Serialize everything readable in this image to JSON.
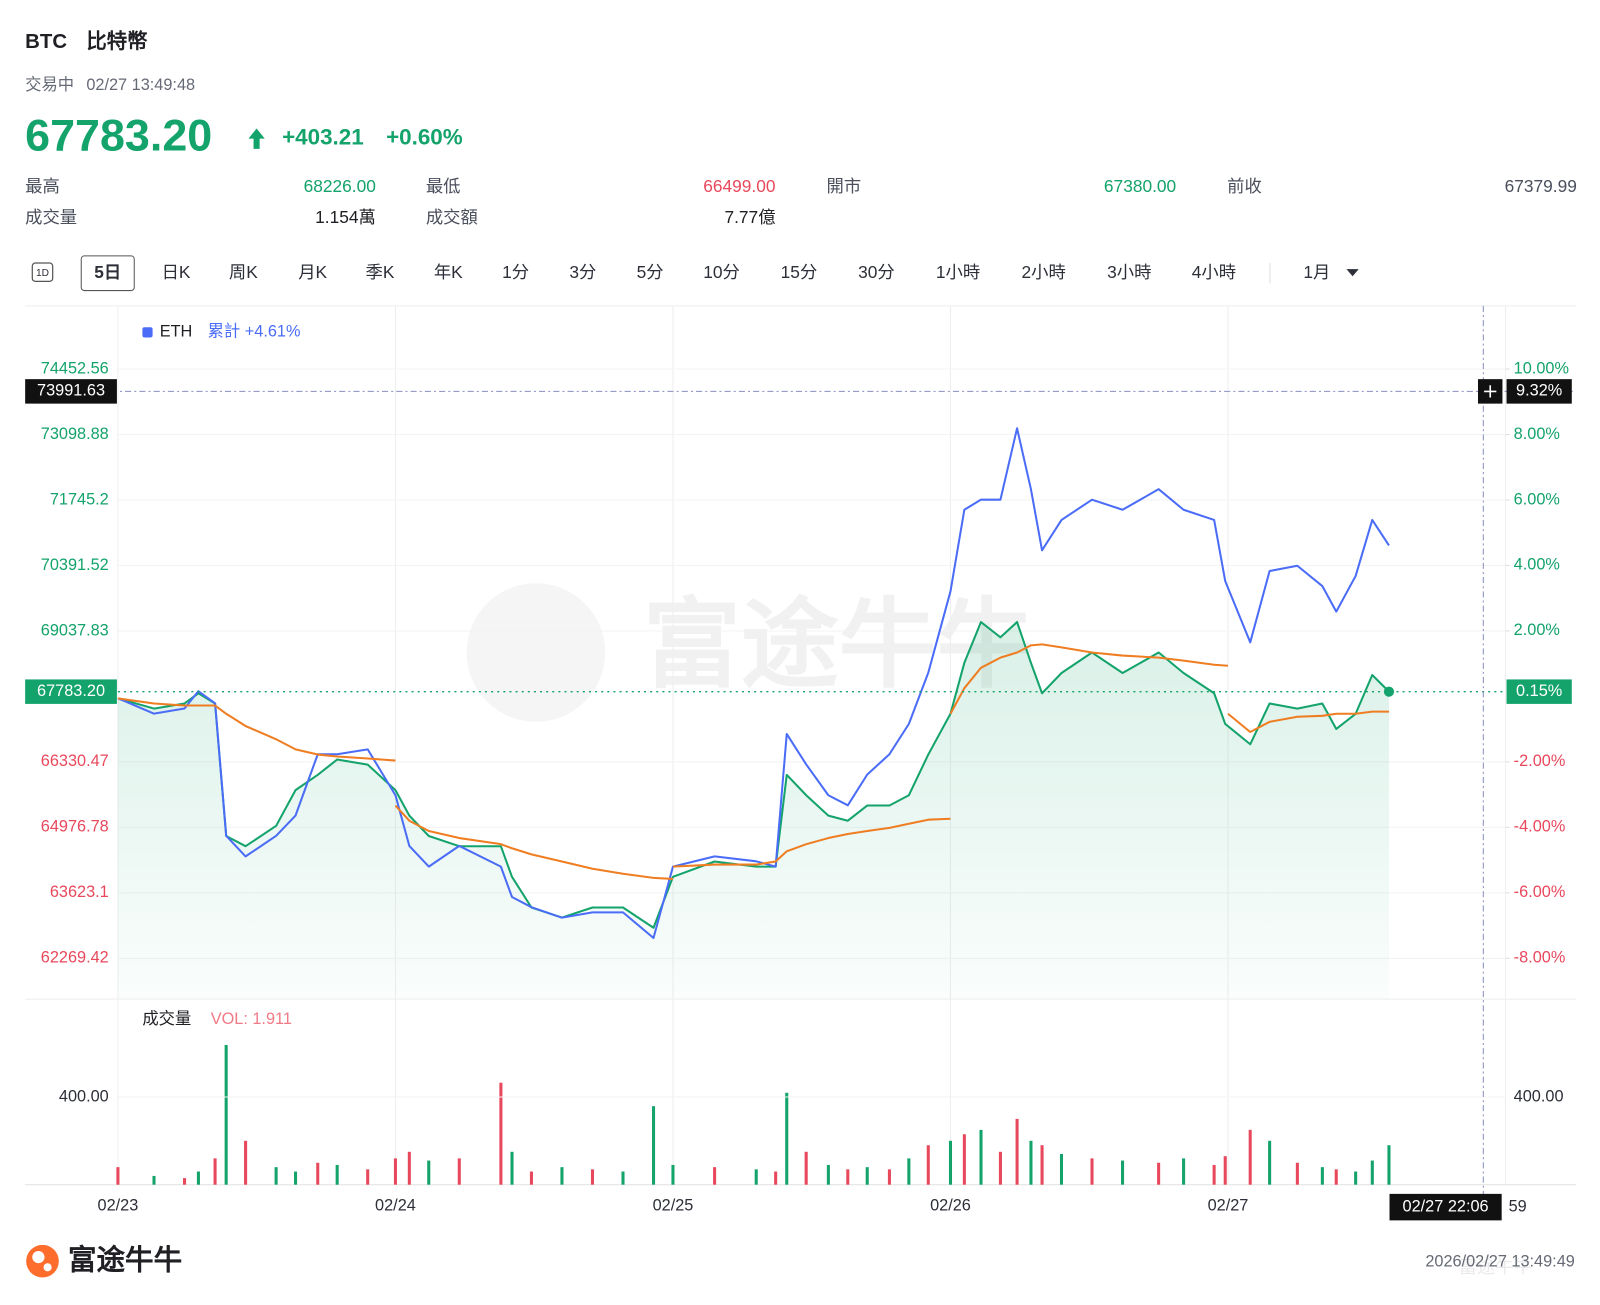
{
  "header": {
    "symbol": "BTC",
    "name": "比特幣",
    "status": "交易中",
    "time": "02/27 13:49:48",
    "price": "67783.20",
    "change": "+403.21",
    "change_pct": "+0.60%"
  },
  "stats": [
    {
      "label": "最高",
      "value": "68226.00",
      "color": "#13a36b"
    },
    {
      "label": "最低",
      "value": "66499.00",
      "color": "#e8485c"
    },
    {
      "label": "開市",
      "value": "67380.00",
      "color": "#13a36b"
    },
    {
      "label": "前收",
      "value": "67379.99",
      "color": "#4b4f5c"
    },
    {
      "label": "成交量",
      "value": "1.154萬",
      "color": "#1f1f24"
    },
    {
      "label": "成交額",
      "value": "7.77億",
      "color": "#1f1f24"
    }
  ],
  "tabs": {
    "items": [
      "1D",
      "5日",
      "日K",
      "周K",
      "月K",
      "季K",
      "年K",
      "1分",
      "3分",
      "5分",
      "10分",
      "15分",
      "30分",
      "1小時",
      "2小時",
      "3小時",
      "4小時"
    ],
    "selected": 1,
    "dropdown": "1月"
  },
  "chart_data": {
    "type": "line",
    "watermark": "富途牛牛",
    "baseline": 67379.99,
    "up_color": "#13a36b",
    "down_color": "#e8485c",
    "xlim": [
      0,
      5
    ],
    "xticks": [
      {
        "value": 0,
        "label": "02/23"
      },
      {
        "value": 1,
        "label": "02/24"
      },
      {
        "value": 2,
        "label": "02/25"
      },
      {
        "value": 3,
        "label": "02/26"
      },
      {
        "value": 4,
        "label": "02/27"
      }
    ],
    "ylim": [
      61426,
      75760
    ],
    "yticks": [
      74452.56,
      73098.88,
      71745.2,
      70391.52,
      69037.83,
      66330.47,
      64976.78,
      63623.1,
      62269.42
    ],
    "y2lim": [
      -9.25,
      11.93
    ],
    "y2ticks": [
      {
        "value": 10,
        "label": "10.00%"
      },
      {
        "value": 8,
        "label": "8.00%"
      },
      {
        "value": 6,
        "label": "6.00%"
      },
      {
        "value": 4,
        "label": "4.00%"
      },
      {
        "value": 2,
        "label": "2.00%"
      },
      {
        "value": -2,
        "label": "-2.00%"
      },
      {
        "value": -4,
        "label": "-4.00%"
      },
      {
        "value": -6,
        "label": "-6.00%"
      },
      {
        "value": -8,
        "label": "-8.00%"
      }
    ],
    "last_price": {
      "value": 67783.2,
      "label": "67783.20",
      "pct_label": "0.15%"
    },
    "crosshair": {
      "y": 73991.63,
      "y_label": "73991.63",
      "y2_label": "9.32%",
      "x": 4.92,
      "x_label": "02/27 22:06",
      "x_fragment": "59"
    },
    "x": [
      0,
      0.13,
      0.24,
      0.29,
      0.35,
      0.39,
      0.46,
      0.57,
      0.64,
      0.72,
      0.79,
      0.9,
      1.0,
      1.05,
      1.12,
      1.23,
      1.38,
      1.42,
      1.49,
      1.6,
      1.71,
      1.82,
      1.93,
      2.0,
      2.15,
      2.3,
      2.37,
      2.41,
      2.48,
      2.56,
      2.63,
      2.7,
      2.78,
      2.85,
      2.92,
      3.0,
      3.05,
      3.11,
      3.18,
      3.24,
      3.29,
      3.33,
      3.4,
      3.51,
      3.62,
      3.75,
      3.84,
      3.95,
      3.99,
      4.08,
      4.15,
      4.25,
      4.34,
      4.39,
      4.46,
      4.52,
      4.58
    ],
    "series": [
      {
        "color": "#13a36b",
        "area": true,
        "values": [
          67644,
          67433,
          67539,
          67749,
          67539,
          64798,
          64587,
          65009,
          65747,
          66063,
          66379,
          66274,
          65747,
          65220,
          64798,
          64587,
          64587,
          63955,
          63322,
          63112,
          63322,
          63322,
          62901,
          63955,
          64271,
          64166,
          64166,
          66063,
          65641,
          65220,
          65114,
          65430,
          65430,
          65641,
          66484,
          67327,
          68381,
          69224,
          68908,
          69224,
          68381,
          67749,
          68170,
          68592,
          68170,
          68592,
          68170,
          67749,
          67116,
          66695,
          67539,
          67433,
          67539,
          67011,
          67327,
          68128,
          67783.2
        ]
      },
      {
        "name": "ETH",
        "legend_note": "累計 +4.61%",
        "color": "#4a6cf7",
        "axis": "y2",
        "values": [
          -0.06,
          -0.53,
          -0.37,
          0.16,
          -0.21,
          -4.26,
          -4.89,
          -4.26,
          -3.64,
          -1.77,
          -1.77,
          -1.62,
          -3.02,
          -4.57,
          -5.2,
          -4.57,
          -5.2,
          -6.13,
          -6.44,
          -6.76,
          -6.6,
          -6.6,
          -7.38,
          -5.2,
          -4.89,
          -5.04,
          -5.2,
          -1.15,
          -2.08,
          -3.02,
          -3.33,
          -2.39,
          -1.77,
          -0.84,
          0.72,
          3.21,
          5.7,
          6.01,
          6.01,
          8.19,
          6.33,
          4.46,
          5.39,
          6.01,
          5.7,
          6.33,
          5.7,
          5.39,
          3.52,
          1.65,
          3.83,
          3.99,
          3.37,
          2.59,
          3.68,
          5.39,
          4.61
        ]
      },
      {
        "color": "#ef7d22",
        "x": [
          0,
          0.13,
          0.24,
          0.29,
          0.35,
          0.39,
          0.46,
          0.57,
          0.64,
          0.72,
          0.79,
          0.9,
          1.0
        ],
        "values": [
          67644,
          67538,
          67496,
          67496,
          67496,
          67327,
          67074,
          66800,
          66590,
          66484,
          66442,
          66400,
          66358
        ]
      },
      {
        "color": "#ef7d22",
        "x": [
          1.0,
          1.05,
          1.12,
          1.23,
          1.38,
          1.42,
          1.49,
          1.6,
          1.71,
          1.82,
          1.93,
          2.0
        ],
        "values": [
          65430,
          65114,
          64903,
          64756,
          64630,
          64545,
          64419,
          64271,
          64123,
          64018,
          63933,
          63912
        ]
      },
      {
        "color": "#ef7d22",
        "x": [
          2.0,
          2.15,
          2.3,
          2.37,
          2.41,
          2.48,
          2.56,
          2.63,
          2.7,
          2.78,
          2.85,
          2.92,
          3.0
        ],
        "values": [
          64166,
          64208,
          64208,
          64271,
          64482,
          64630,
          64756,
          64840,
          64903,
          64967,
          65051,
          65135,
          65156
        ]
      },
      {
        "color": "#ef7d22",
        "x": [
          3.0,
          3.05,
          3.11,
          3.18,
          3.24,
          3.29,
          3.33,
          3.4,
          3.51,
          3.62,
          3.75,
          3.84,
          3.95,
          4.0
        ],
        "values": [
          67327,
          67855,
          68276,
          68487,
          68592,
          68740,
          68761,
          68698,
          68592,
          68529,
          68487,
          68424,
          68339,
          68318
        ]
      },
      {
        "color": "#ef7d22",
        "x": [
          4.0,
          4.08,
          4.15,
          4.25,
          4.34,
          4.39,
          4.46,
          4.52,
          4.58
        ],
        "values": [
          67327,
          66948,
          67159,
          67264,
          67285,
          67327,
          67327,
          67370,
          67370
        ]
      }
    ],
    "volume": {
      "title": "成交量",
      "label": "VOL: 1.911",
      "ylim": [
        0,
        846
      ],
      "yticks": [
        {
          "value": 400,
          "label": "400.00"
        }
      ],
      "values": [
        80,
        40,
        30,
        60,
        120,
        637,
        200,
        80,
        60,
        100,
        90,
        70,
        120,
        150,
        110,
        120,
        465,
        150,
        60,
        80,
        70,
        60,
        358,
        90,
        80,
        70,
        60,
        419,
        150,
        90,
        70,
        80,
        70,
        120,
        180,
        200,
        230,
        250,
        150,
        300,
        200,
        180,
        140,
        120,
        110,
        100,
        120,
        90,
        130,
        250,
        200,
        100,
        80,
        70,
        60,
        110,
        180
      ],
      "colors": [
        "#e8485c",
        "#13a36b",
        "#e8485c",
        "#13a36b",
        "#e8485c",
        "#13a36b",
        "#e8485c",
        "#13a36b",
        "#13a36b",
        "#e8485c",
        "#13a36b",
        "#e8485c",
        "#e8485c",
        "#e8485c",
        "#13a36b",
        "#e8485c",
        "#e8485c",
        "#13a36b",
        "#e8485c",
        "#13a36b",
        "#e8485c",
        "#13a36b",
        "#13a36b",
        "#13a36b",
        "#e8485c",
        "#13a36b",
        "#e8485c",
        "#13a36b",
        "#e8485c",
        "#13a36b",
        "#e8485c",
        "#13a36b",
        "#e8485c",
        "#13a36b",
        "#e8485c",
        "#13a36b",
        "#e8485c",
        "#13a36b",
        "#e8485c",
        "#e8485c",
        "#13a36b",
        "#e8485c",
        "#13a36b",
        "#e8485c",
        "#13a36b",
        "#e8485c",
        "#13a36b",
        "#e8485c",
        "#e8485c",
        "#e8485c",
        "#13a36b",
        "#e8485c",
        "#13a36b",
        "#e8485c",
        "#13a36b",
        "#13a36b",
        "#13a36b"
      ]
    }
  },
  "footer": {
    "brand": "富途牛牛",
    "timestamp": "2026/02/27 13:49:49"
  }
}
